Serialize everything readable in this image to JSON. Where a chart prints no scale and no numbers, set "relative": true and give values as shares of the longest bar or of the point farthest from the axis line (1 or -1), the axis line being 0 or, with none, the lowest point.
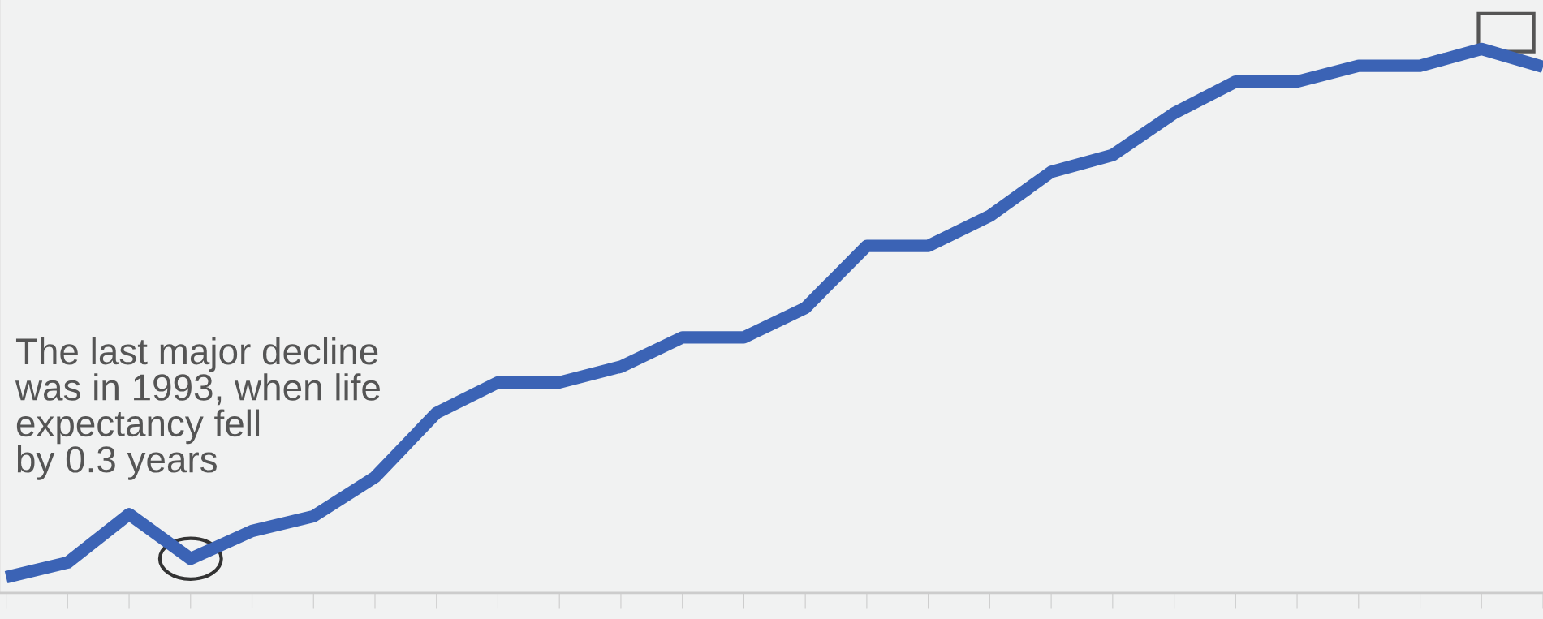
{
  "chart_data": {
    "type": "line",
    "relative": true,
    "grid": false,
    "legend": false,
    "marker": "none",
    "line_style": "solid",
    "categories": [
      null,
      null,
      null,
      null,
      null,
      null,
      null,
      null,
      null,
      null,
      null,
      null,
      null,
      null,
      null,
      null,
      null,
      null,
      null,
      null,
      null,
      null,
      null,
      null,
      null,
      null
    ],
    "series": [
      {
        "color": "#3b63b5",
        "values": [
          0.029,
          0.056,
          0.145,
          0.063,
          0.114,
          0.141,
          0.213,
          0.331,
          0.387,
          0.387,
          0.416,
          0.47,
          0.47,
          0.524,
          0.638,
          0.638,
          0.693,
          0.774,
          0.805,
          0.882,
          0.94,
          0.94,
          0.969,
          0.969,
          1,
          0.967
        ]
      }
    ],
    "annotations": [
      "The last major decline\nwas in 1993, when life\nexpectancy fell\nby 0.3 years"
    ]
  }
}
